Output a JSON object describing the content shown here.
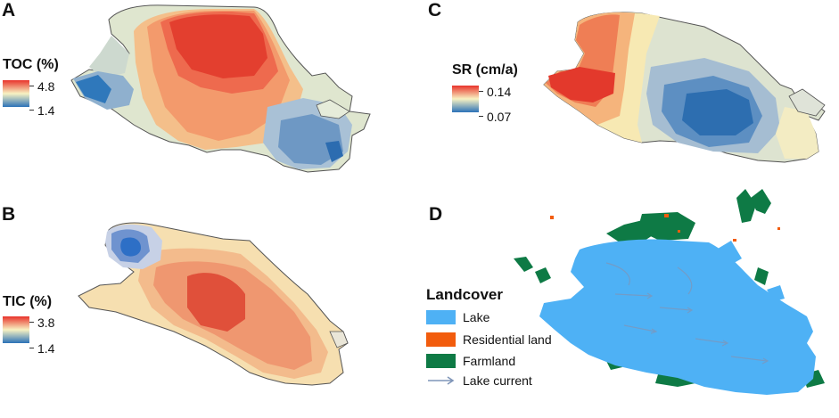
{
  "panels": {
    "a": {
      "letter": "A",
      "legend_title": "TOC (%)",
      "max_label": "4.8",
      "min_label": "1.4",
      "colors": {
        "high": "#e8332b",
        "mid": "#f8f2c2",
        "low": "#2b72b8"
      }
    },
    "b": {
      "letter": "B",
      "legend_title": "TIC (%)",
      "max_label": "3.8",
      "min_label": "1.4",
      "colors": {
        "high": "#e8332b",
        "mid": "#f8f2c2",
        "low": "#2b72b8"
      }
    },
    "c": {
      "letter": "C",
      "legend_title": "SR (cm/a)",
      "max_label": "0.14",
      "min_label": "0.07",
      "colors": {
        "high": "#e8332b",
        "mid": "#f8f2c2",
        "low": "#2b72b8"
      }
    },
    "d": {
      "letter": "D",
      "legend_title": "Landcover",
      "items": [
        {
          "label": "Lake",
          "color": "#4eb1f5"
        },
        {
          "label": "Residential land",
          "color": "#f25c0d"
        },
        {
          "label": "Farmland",
          "color": "#0e7a45"
        }
      ],
      "current_label": "Lake current",
      "current_color": "#7f95b8"
    }
  }
}
